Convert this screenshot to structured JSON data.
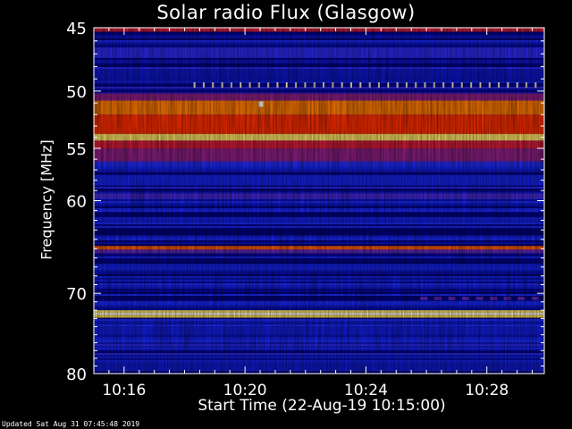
{
  "chart_data": {
    "type": "heatmap",
    "title": "Solar radio Flux (Glasgow)",
    "xlabel": "Start Time (22-Aug-19 10:15:00)",
    "ylabel": "Frequency [MHz]",
    "x_ticks": [
      {
        "label": "10:16",
        "minutes": 1
      },
      {
        "label": "10:20",
        "minutes": 5
      },
      {
        "label": "10:24",
        "minutes": 9
      },
      {
        "label": "10:28",
        "minutes": 13
      }
    ],
    "xlim_minutes": [
      0,
      14.9
    ],
    "y_ticks": [
      45,
      50,
      55,
      60,
      70,
      80
    ],
    "ylim": [
      45,
      80
    ],
    "y_scale": "log",
    "colormap": [
      "#000033",
      "#00008c",
      "#1a2cff",
      "#c01a50",
      "#ff2000",
      "#ffd200",
      "#ffffff"
    ],
    "bands": [
      {
        "low": 45.0,
        "high": 45.3,
        "level": 0.55
      },
      {
        "low": 46.5,
        "high": 47.3,
        "level": 0.35
      },
      {
        "low": 48.2,
        "high": 49.0,
        "level": 0.25
      },
      {
        "low": 50.2,
        "high": 50.8,
        "level": 0.45
      },
      {
        "low": 50.8,
        "high": 52.0,
        "level": 0.75
      },
      {
        "low": 52.0,
        "high": 53.7,
        "level": 0.68
      },
      {
        "low": 53.7,
        "high": 54.3,
        "level": 0.9
      },
      {
        "low": 54.3,
        "high": 55.0,
        "level": 0.55
      },
      {
        "low": 55.0,
        "high": 56.2,
        "level": 0.45
      },
      {
        "low": 57.5,
        "high": 58.5,
        "level": 0.3
      },
      {
        "low": 59.3,
        "high": 59.7,
        "level": 0.38
      },
      {
        "low": 64.7,
        "high": 65.1,
        "level": 0.72
      },
      {
        "low": 65.1,
        "high": 65.5,
        "level": 0.4
      },
      {
        "low": 66.8,
        "high": 67.4,
        "level": 0.3
      },
      {
        "low": 70.9,
        "high": 71.4,
        "level": 0.32
      },
      {
        "low": 72.0,
        "high": 72.3,
        "level": 0.9
      },
      {
        "low": 72.3,
        "high": 72.6,
        "level": 0.98
      },
      {
        "low": 72.6,
        "high": 72.9,
        "level": 0.88
      },
      {
        "low": 74.0,
        "high": 75.0,
        "level": 0.28
      },
      {
        "low": 78.5,
        "high": 79.5,
        "level": 0.26
      }
    ],
    "features": [
      {
        "name": "dotted-interference",
        "freq": 49.5,
        "from_minutes": 3.3,
        "to_minutes": 14.9,
        "level": 0.97
      },
      {
        "name": "dashed-interference",
        "freq": 70.6,
        "from_minutes": 10.8,
        "to_minutes": 14.9,
        "level": 0.4
      },
      {
        "name": "spike",
        "freq": 51.1,
        "from_minutes": 5.45,
        "to_minutes": 5.6,
        "level": 1.0
      }
    ]
  },
  "footer": {
    "updated": "Updated Sat Aug 31 07:45:48 2019"
  }
}
